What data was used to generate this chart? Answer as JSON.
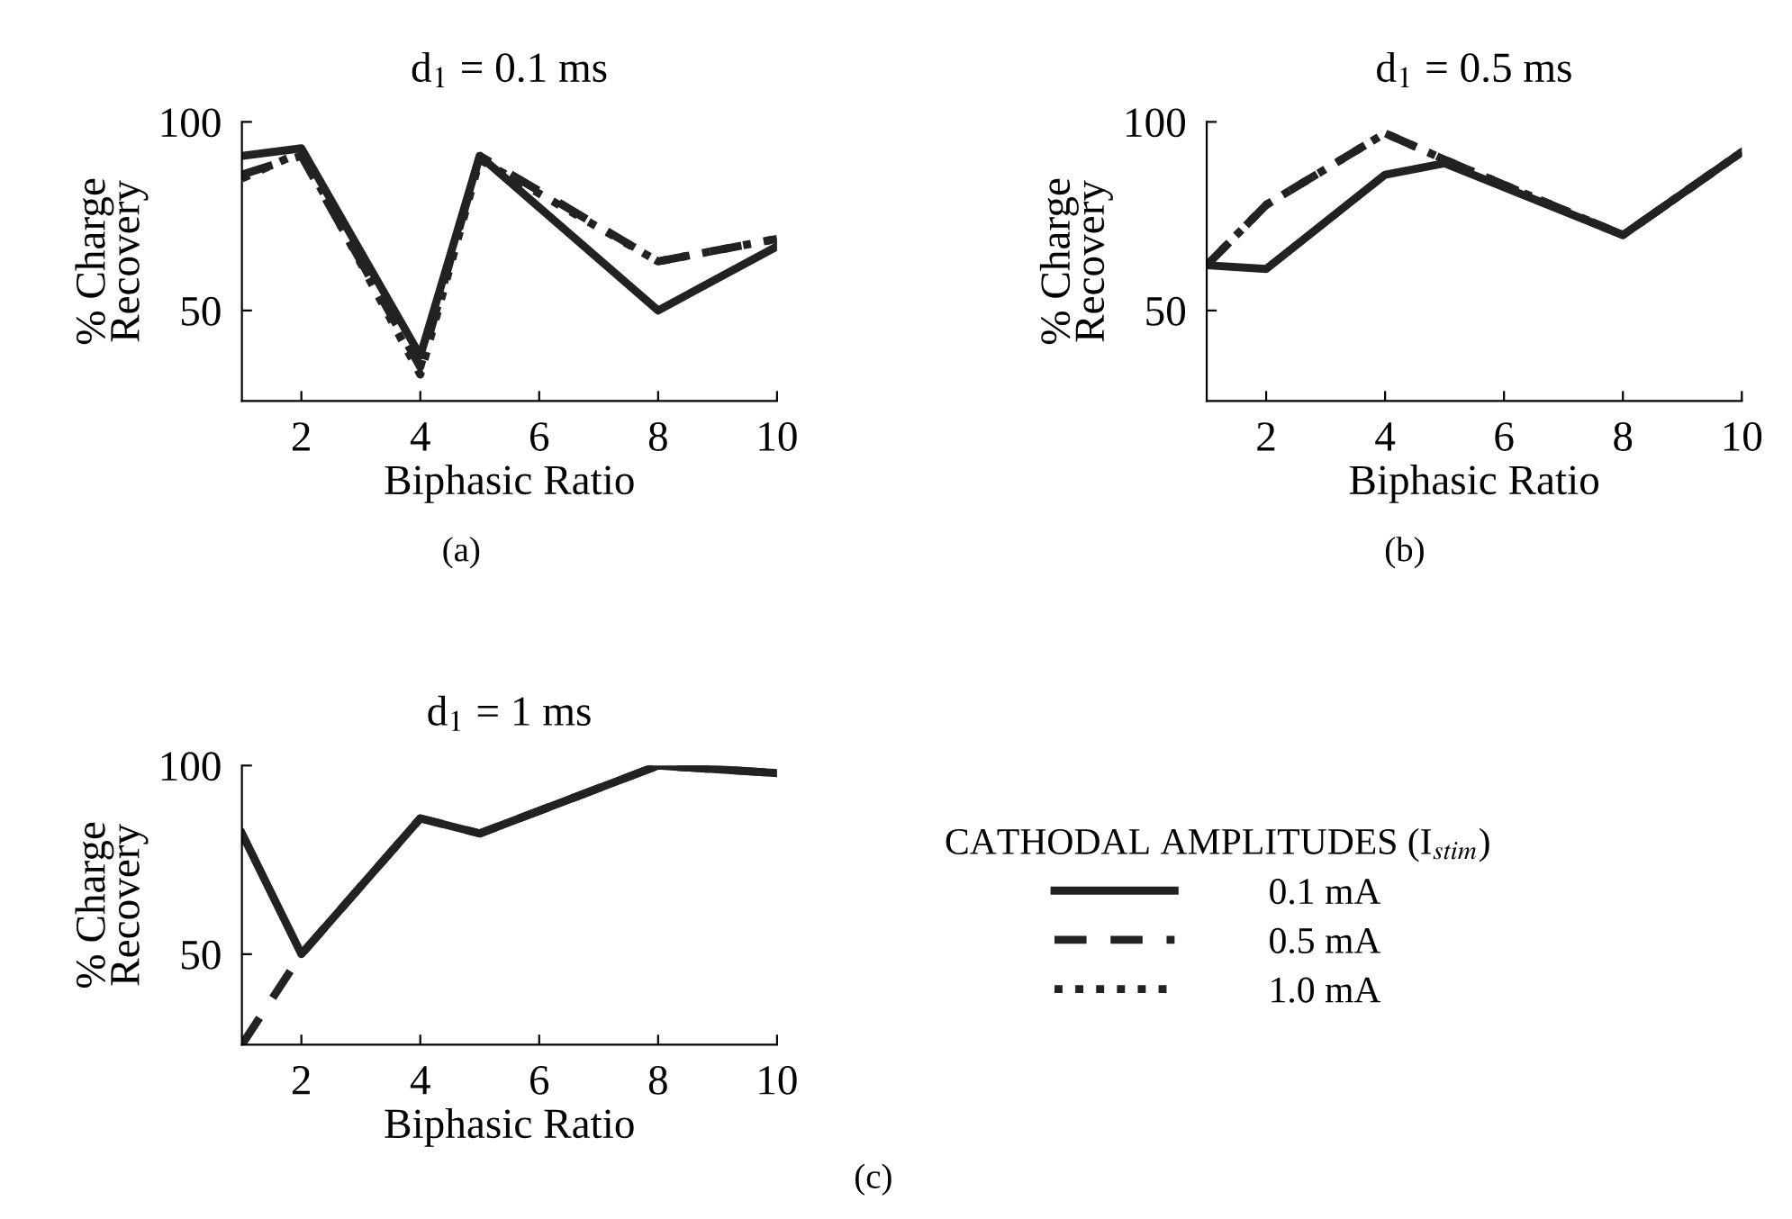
{
  "chart_data": [
    {
      "type": "line",
      "title": "d$_{1}$ = 0.1 ms",
      "xlabel": "Biphasic Ratio",
      "ylabel": "% Charge\nRecovery",
      "x": [
        1,
        2,
        4,
        5,
        8,
        10
      ],
      "xlim": [
        1,
        10
      ],
      "xticks": [
        2,
        4,
        6,
        8,
        10
      ],
      "ylim": [
        26,
        100
      ],
      "yticks": [
        50,
        100
      ],
      "grid": false,
      "legend": false,
      "annotations": [
        "(a)"
      ],
      "series": [
        {
          "color": "#222222",
          "line_style": "solid",
          "values": [
            91,
            93,
            38,
            91,
            50,
            67
          ]
        },
        {
          "color": "#222222",
          "line_style": "dashed",
          "values": [
            86,
            91,
            35,
            91,
            63,
            69
          ]
        },
        {
          "color": "#222222",
          "line_style": "dotted",
          "values": [
            85,
            92,
            33,
            90,
            63,
            69
          ]
        }
      ]
    },
    {
      "type": "line",
      "title": "d$_{1}$ = 0.5 ms",
      "xlabel": "Biphasic Ratio",
      "ylabel": "% Charge\nRecovery",
      "x": [
        1,
        2,
        4,
        5,
        8,
        10
      ],
      "xlim": [
        1,
        10
      ],
      "xticks": [
        2,
        4,
        6,
        8,
        10
      ],
      "ylim": [
        26,
        100
      ],
      "yticks": [
        50,
        100
      ],
      "grid": false,
      "legend": false,
      "annotations": [
        "(b)"
      ],
      "series": [
        {
          "color": "#222222",
          "line_style": "solid",
          "values": [
            62,
            61,
            86,
            89,
            70,
            92
          ]
        },
        {
          "color": "#222222",
          "line_style": "dashed",
          "values": [
            62,
            78,
            97,
            90,
            70,
            92
          ]
        },
        {
          "color": "#222222",
          "line_style": "dotted",
          "values": [
            62,
            78,
            97,
            90,
            70,
            92
          ]
        }
      ]
    },
    {
      "type": "line",
      "title": "d$_{1}$ = 1 ms",
      "xlabel": "Biphasic Ratio",
      "ylabel": "% Charge\nRecovery",
      "x": [
        1,
        2,
        4,
        5,
        8,
        10
      ],
      "xlim": [
        1,
        10
      ],
      "xticks": [
        2,
        4,
        6,
        8,
        10
      ],
      "ylim": [
        26,
        100
      ],
      "yticks": [
        50,
        100
      ],
      "grid": false,
      "legend": "right",
      "legend_title": "CATHODAL AMPLITUDES (I$_{stim}$)",
      "annotations": [
        "(c)"
      ],
      "series": [
        {
          "name": "0.1 mA",
          "color": "#222222",
          "line_style": "solid",
          "values": [
            82,
            50,
            86,
            82,
            100,
            98
          ]
        },
        {
          "name": "0.5 mA",
          "color": "#222222",
          "line_style": "dashed",
          "values": [
            26,
            50,
            86,
            82,
            100,
            98
          ]
        },
        {
          "name": "1.0 mA",
          "color": "#222222",
          "line_style": "dotted",
          "values": [
            null,
            null,
            null,
            null,
            null,
            null
          ]
        }
      ]
    }
  ]
}
